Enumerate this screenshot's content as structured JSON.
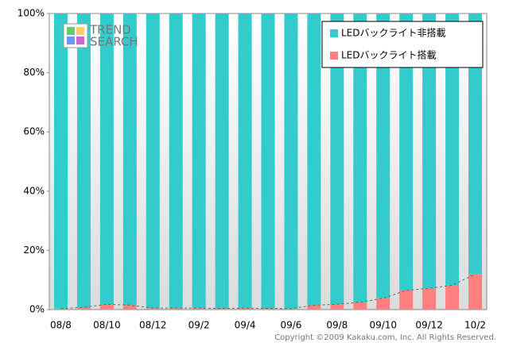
{
  "chart_data": {
    "type": "stacked-bar",
    "logo": [
      "TREND",
      "SEARCH"
    ],
    "copyright": "Copyright ©2009 Kakaku.com, Inc. All Rights Reserved.",
    "categories": [
      "08/8",
      null,
      "08/10",
      null,
      "08/12",
      null,
      "09/2",
      null,
      "09/4",
      null,
      "09/6",
      null,
      "09/8",
      null,
      "09/10",
      null,
      "09/12",
      null,
      "10/2"
    ],
    "series": [
      {
        "name": "LEDバックライト非搭載",
        "color": "#33cccc",
        "values": [
          99.7,
          99.2,
          98.2,
          98.5,
          99.5,
          99.5,
          99.5,
          99.6,
          99.5,
          99.6,
          99.7,
          98.5,
          98.2,
          97.5,
          96.2,
          93.5,
          92.8,
          91.8,
          88
        ]
      },
      {
        "name": "LEDバックライト搭載",
        "color": "#ff8080",
        "values": [
          0.3,
          0.8,
          1.8,
          1.5,
          0.5,
          0.5,
          0.5,
          0.4,
          0.5,
          0.4,
          0.3,
          1.5,
          1.8,
          2.5,
          3.8,
          6.5,
          7.2,
          8.2,
          12
        ]
      }
    ],
    "ylim": [
      0,
      100
    ],
    "yticks": [
      {
        "value": 0,
        "label": "0%"
      },
      {
        "value": 20,
        "label": "20%"
      },
      {
        "value": 40,
        "label": "40%"
      },
      {
        "value": 60,
        "label": "60%"
      },
      {
        "value": 80,
        "label": "80%"
      },
      {
        "value": 100,
        "label": "100%"
      }
    ],
    "legend": "top-right"
  }
}
